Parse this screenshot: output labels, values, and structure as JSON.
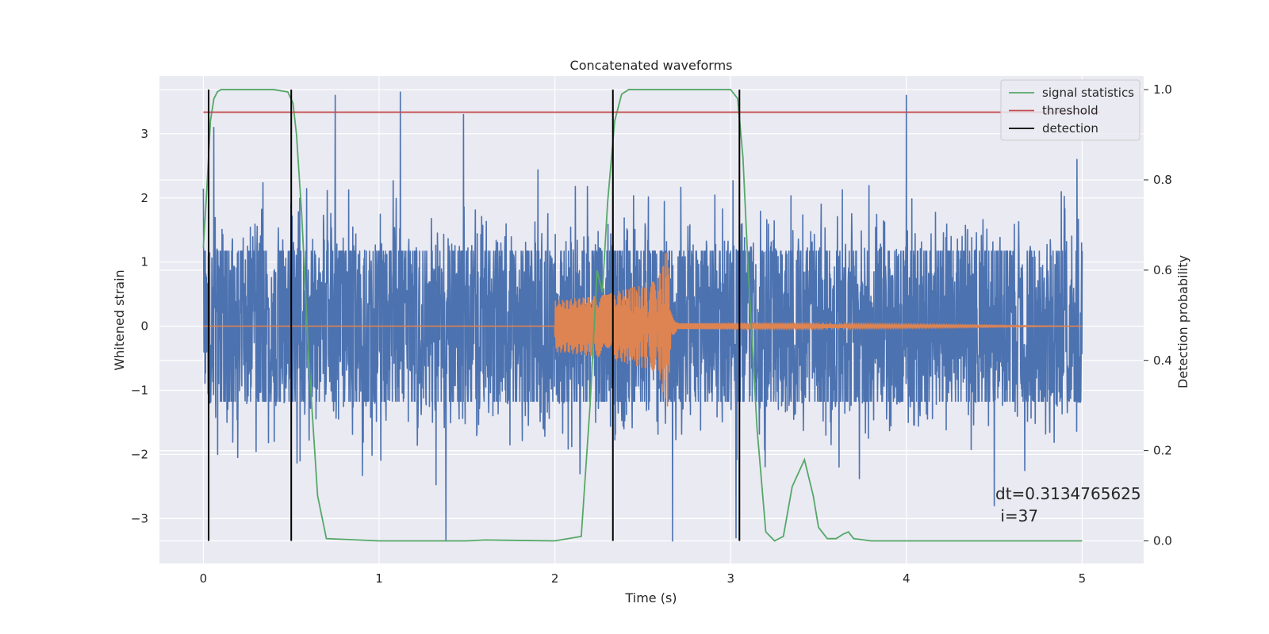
{
  "chart_data": {
    "type": "line",
    "title": "Concatenated waveforms",
    "xlabel": "Time (s)",
    "ylabel": "Whitened strain",
    "ylabel_right": "Detection probability",
    "xlim": [
      -0.25,
      5.35
    ],
    "ylim": [
      -3.7,
      3.9
    ],
    "ylim_right": [
      -0.05,
      1.03
    ],
    "xticks": [
      0,
      1,
      2,
      3,
      4,
      5
    ],
    "xtick_labels": [
      "0",
      "1",
      "2",
      "3",
      "4",
      "5"
    ],
    "yticks": [
      -3,
      -2,
      -1,
      0,
      1,
      2,
      3
    ],
    "ytick_labels": [
      "−3",
      "−2",
      "−1",
      "0",
      "1",
      "2",
      "3"
    ],
    "yticks_right": [
      0.0,
      0.2,
      0.4,
      0.6,
      0.8,
      1.0
    ],
    "ytick_labels_right": [
      "0.0",
      "0.2",
      "0.4",
      "0.6",
      "0.8",
      "1.0"
    ],
    "grid": true,
    "legend_position": "top-right",
    "legend": [
      {
        "label": "signal statistics",
        "color": "#55a868"
      },
      {
        "label": "threshold",
        "color": "#c44e52"
      },
      {
        "label": "detection",
        "color": "#000000"
      }
    ],
    "series": [
      {
        "name": "noise",
        "axis": "left",
        "color": "#4c72b0",
        "kind": "noise",
        "x_range": [
          0,
          5
        ],
        "envelope": 1.3,
        "spikes": [
          {
            "x": 0.06,
            "y": 3.1
          },
          {
            "x": 0.55,
            "y": -2.1
          },
          {
            "x": 0.75,
            "y": 3.6
          },
          {
            "x": 1.12,
            "y": 3.65
          },
          {
            "x": 1.38,
            "y": -3.35
          },
          {
            "x": 1.48,
            "y": 3.3
          },
          {
            "x": 2.33,
            "y": 3.6
          },
          {
            "x": 2.67,
            "y": -3.35
          },
          {
            "x": 3.03,
            "y": -3.3
          },
          {
            "x": 4.0,
            "y": 3.6
          },
          {
            "x": 4.5,
            "y": -2.8
          },
          {
            "x": 4.97,
            "y": 2.6
          }
        ]
      },
      {
        "name": "injected waveform",
        "axis": "left",
        "color": "#dd8452",
        "kind": "chirp",
        "x": [
          0,
          2.0,
          2.0,
          2.3,
          2.5,
          2.6,
          2.64,
          2.65,
          2.66,
          2.7,
          5.0
        ],
        "amplitude": [
          0,
          0,
          0.4,
          0.5,
          0.65,
          0.85,
          1.3,
          0.9,
          0.2,
          0.05,
          0
        ]
      },
      {
        "name": "signal statistics",
        "axis": "right",
        "color": "#55a868",
        "x": [
          0,
          0.02,
          0.04,
          0.06,
          0.08,
          0.1,
          0.15,
          0.2,
          0.3,
          0.4,
          0.48,
          0.51,
          0.53,
          0.56,
          0.6,
          0.65,
          0.7,
          1.0,
          1.5,
          1.6,
          2.0,
          2.15,
          2.2,
          2.24,
          2.27,
          2.3,
          2.34,
          2.38,
          2.42,
          2.5,
          3.0,
          3.04,
          3.07,
          3.1,
          3.15,
          3.2,
          3.25,
          3.3,
          3.35,
          3.42,
          3.47,
          3.5,
          3.55,
          3.6,
          3.64,
          3.67,
          3.7,
          3.8,
          4.0,
          4.5,
          5.0
        ],
        "y": [
          0.65,
          0.78,
          0.93,
          0.98,
          0.995,
          1.0,
          1.0,
          1.0,
          1.0,
          1.0,
          0.995,
          0.97,
          0.9,
          0.72,
          0.4,
          0.1,
          0.005,
          0.0,
          0.0,
          0.002,
          0.0,
          0.01,
          0.3,
          0.6,
          0.55,
          0.75,
          0.93,
          0.99,
          1.0,
          1.0,
          1.0,
          0.98,
          0.85,
          0.6,
          0.25,
          0.02,
          0.0,
          0.01,
          0.12,
          0.18,
          0.1,
          0.03,
          0.005,
          0.005,
          0.015,
          0.02,
          0.005,
          0.0,
          0.0,
          0.0,
          0.0
        ]
      },
      {
        "name": "threshold",
        "axis": "right",
        "color": "#c44e52",
        "x": [
          0,
          5.1
        ],
        "y": [
          0.95,
          0.95
        ]
      }
    ],
    "detections": [
      0.03,
      0.5,
      2.33,
      3.05
    ],
    "annotation": {
      "text_line1": "dt=0.3134765625",
      "text_line2": " i=37"
    }
  }
}
